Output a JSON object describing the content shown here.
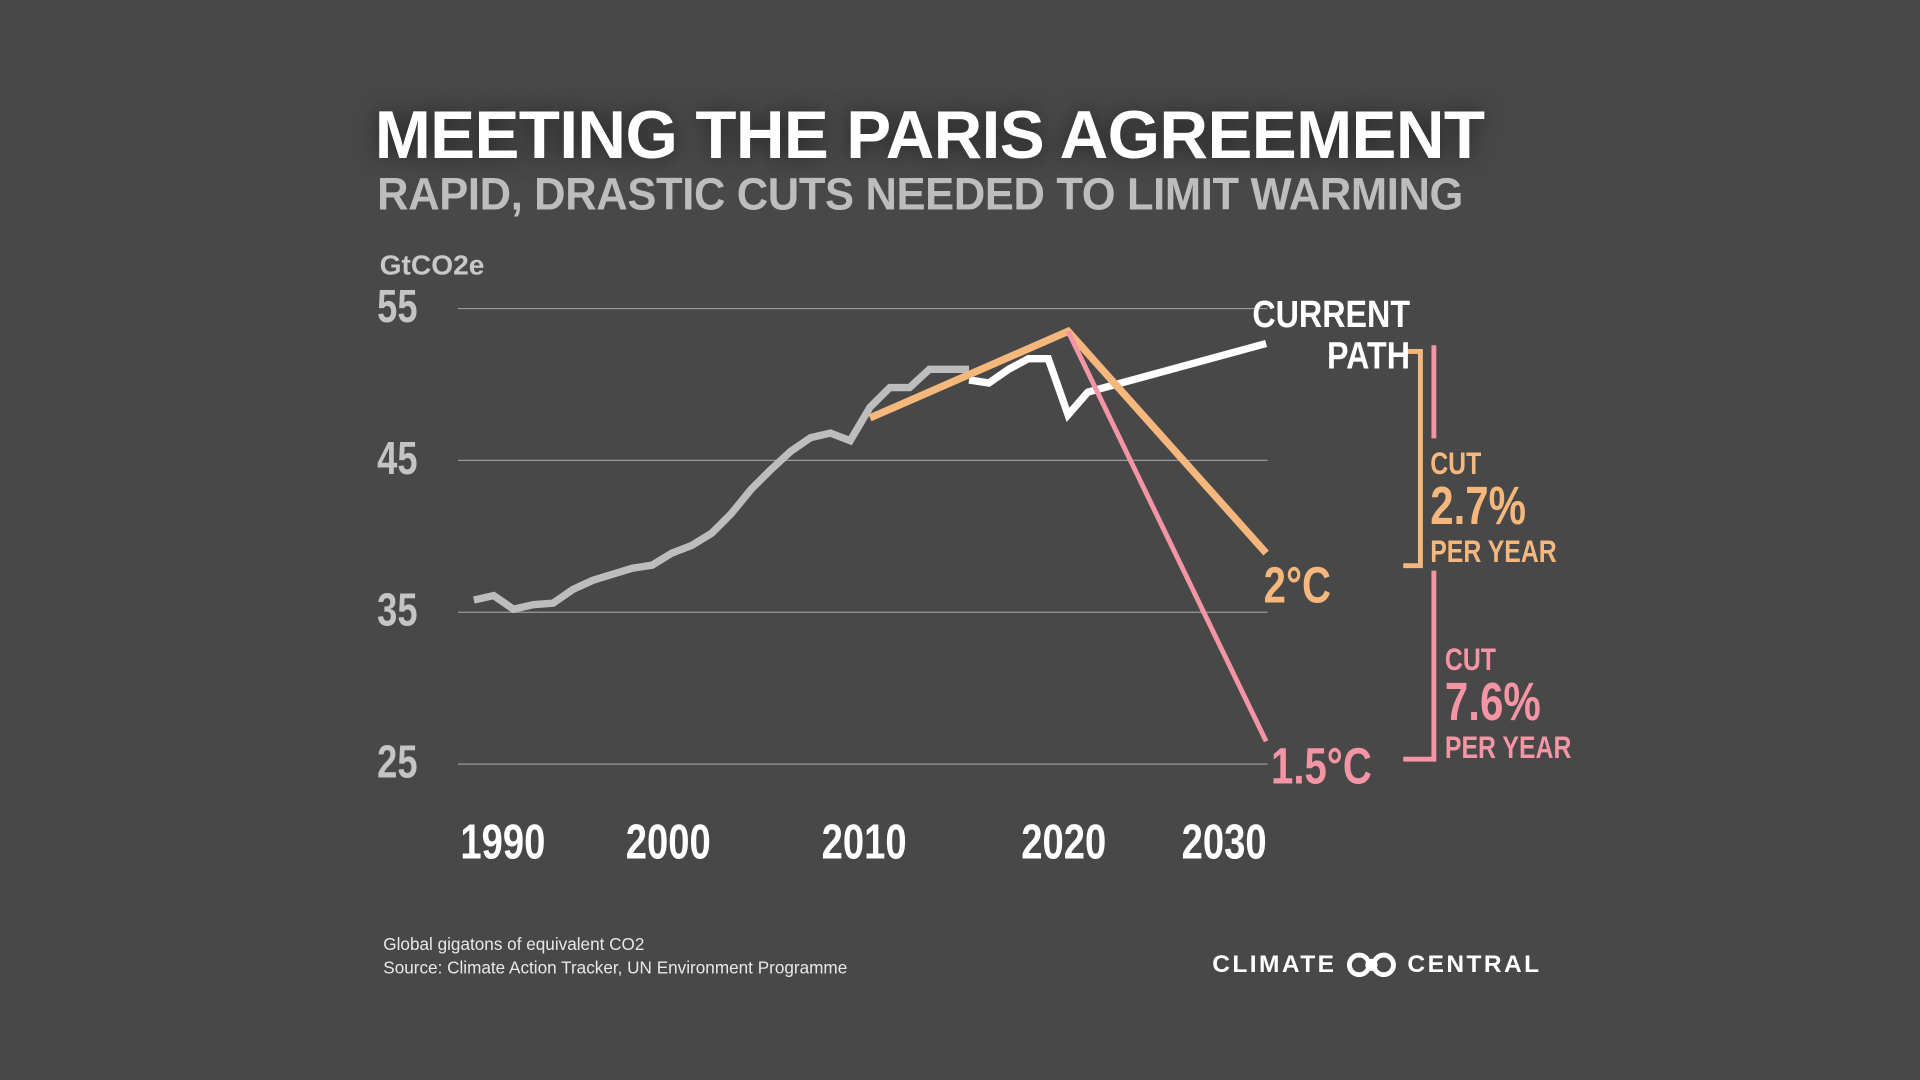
{
  "title": "MEETING THE PARIS AGREEMENT",
  "subtitle": "RAPID, DRASTIC CUTS NEEDED TO LIMIT WARMING",
  "footnote": {
    "line1": "Global gigatons of equivalent CO2",
    "line2": "Source:  Climate Action Tracker, UN Environment Programme"
  },
  "logo": {
    "left": "CLIMATE",
    "right": "CENTRAL",
    "icon": "climate-central-rings-icon"
  },
  "labels": {
    "current1": "CURRENT",
    "current2": "PATH",
    "two": "2°C",
    "onefive": "1.5°C"
  },
  "cuts": [
    {
      "top": "CUT",
      "value": "2.7%",
      "bottom": "PER YEAR"
    },
    {
      "top": "CUT",
      "value": "7.6%",
      "bottom": "PER YEAR"
    }
  ],
  "chart_data": {
    "type": "line",
    "ylabel": "GtCO2e",
    "ylim": [
      25,
      55
    ],
    "xlim": [
      1990,
      2030
    ],
    "yticks": [
      "55",
      "45",
      "35",
      "25"
    ],
    "xticks": [
      "1990",
      "2000",
      "2010",
      "2020",
      "2030"
    ],
    "grid": true,
    "series": [
      {
        "color": "#bdbdbd",
        "x": [
          1990,
          1991,
          1992,
          1993,
          1994,
          1995,
          1996,
          1997,
          1998,
          1999,
          2000,
          2001,
          2002,
          2003,
          2004,
          2005,
          2006,
          2007,
          2008,
          2009,
          2010,
          2011,
          2012,
          2013,
          2014,
          2015
        ],
        "y": [
          35.8,
          36.1,
          35.2,
          35.5,
          35.6,
          36.5,
          37.1,
          37.5,
          37.9,
          38.1,
          38.9,
          39.4,
          40.2,
          41.5,
          43.1,
          44.4,
          45.6,
          46.5,
          46.8,
          46.3,
          48.5,
          49.8,
          49.8,
          51.0,
          51.0,
          51.0
        ]
      },
      {
        "name": "CURRENT PATH",
        "color": "#ffffff",
        "x": [
          2015,
          2016,
          2017,
          2018,
          2019,
          2020,
          2021,
          2030
        ],
        "y": [
          50.3,
          50.1,
          51.0,
          51.7,
          51.7,
          48.0,
          49.5,
          52.7
        ]
      },
      {
        "name": "2°C",
        "color": "#f5b77c",
        "x": [
          2010,
          2020,
          2030
        ],
        "y": [
          47.8,
          53.5,
          38.9
        ]
      },
      {
        "name": "1.5°C",
        "color": "#f495a6",
        "x": [
          2020,
          2030
        ],
        "y": [
          53.5,
          26.5
        ]
      }
    ]
  },
  "colors": {
    "background": "#484848",
    "orange": "#f5b77c",
    "pink": "#f495a6"
  }
}
